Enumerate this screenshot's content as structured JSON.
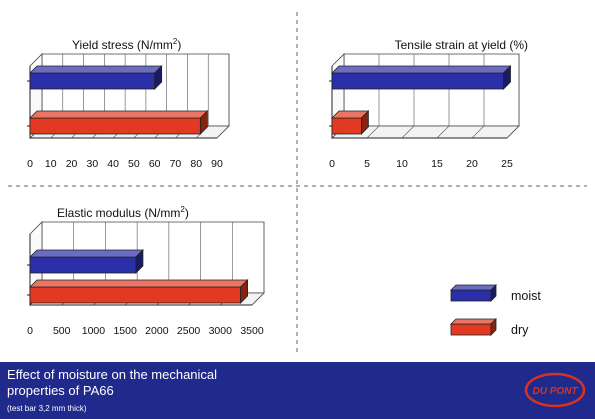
{
  "colors": {
    "moist": "#2a2ea8",
    "dry": "#e23a22",
    "footer": "#1f2a8c",
    "logo": "#d8321e"
  },
  "legend": [
    {
      "key": "moist",
      "label": "moist",
      "color": "#2a2ea8"
    },
    {
      "key": "dry",
      "label": "dry",
      "color": "#e23a22"
    }
  ],
  "chart_data": [
    {
      "type": "bar",
      "orientation": "horizontal",
      "title": "Yield stress (N/mm2)",
      "title_main": "Yield stress (N/mm",
      "title_sup": "2",
      "title_end": ")",
      "xlim": [
        0,
        90
      ],
      "ticks": [
        0,
        10,
        20,
        30,
        40,
        50,
        60,
        70,
        80,
        90
      ],
      "tick_labels": [
        "0",
        "10",
        "20",
        "30",
        "40",
        "50",
        "60",
        "70",
        "80",
        "90"
      ],
      "series": [
        {
          "name": "moist",
          "value": 60
        },
        {
          "name": "dry",
          "value": 82
        }
      ]
    },
    {
      "type": "bar",
      "orientation": "horizontal",
      "title": "Tensile strain at yield (%)",
      "title_main": "Tensile strain at yield (%)",
      "title_sup": "",
      "title_end": "",
      "xlim": [
        0,
        25
      ],
      "ticks": [
        0,
        5,
        10,
        15,
        20,
        25
      ],
      "tick_labels": [
        "0",
        "5",
        "10",
        "15",
        "20",
        "25"
      ],
      "series": [
        {
          "name": "moist",
          "value": 24.5
        },
        {
          "name": "dry",
          "value": 4.2
        }
      ]
    },
    {
      "type": "bar",
      "orientation": "horizontal",
      "title": "Elastic modulus (N/mm2)",
      "title_main": "Elastic modulus (N/mm",
      "title_sup": "2",
      "title_end": ")",
      "xlim": [
        0,
        3500
      ],
      "ticks": [
        0,
        500,
        1000,
        1500,
        2000,
        2500,
        3000,
        3500
      ],
      "tick_labels": [
        "0",
        "500",
        "1000",
        "1500",
        "2000",
        "2500",
        "3000",
        "3500"
      ],
      "series": [
        {
          "name": "moist",
          "value": 1670
        },
        {
          "name": "dry",
          "value": 3320
        }
      ]
    }
  ],
  "caption": {
    "line1": "Effect of moisture on the mechanical",
    "line2": "properties of PA66",
    "note": "(test bar 3,2 mm thick)"
  },
  "logo_text": "DU PONT"
}
